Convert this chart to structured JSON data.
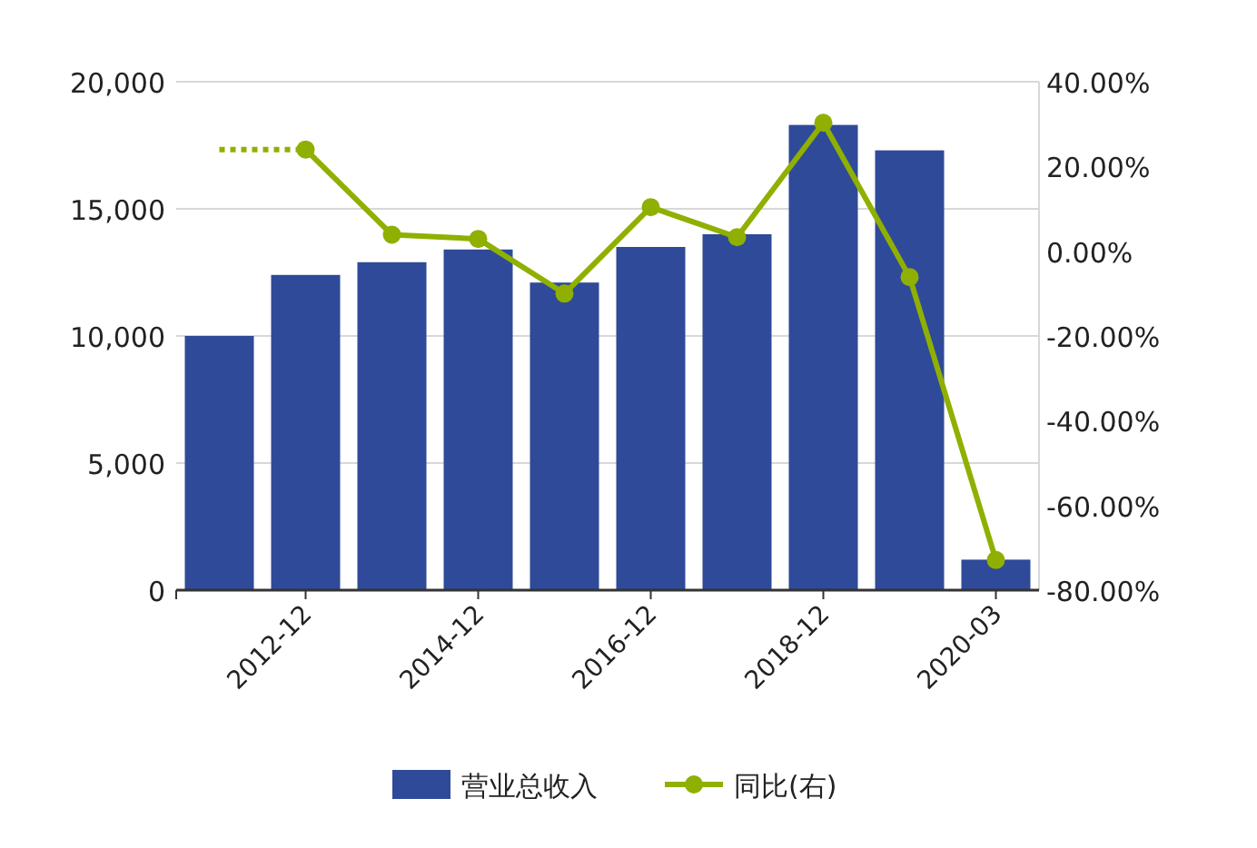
{
  "chart_data": {
    "type": "bar",
    "categories": [
      null,
      "2012-12",
      null,
      "2014-12",
      null,
      "2016-12",
      null,
      "2018-12",
      null,
      "2020-03"
    ],
    "series": [
      {
        "name": "营业总收入",
        "color": "#2f4a98",
        "values": [
          10000,
          12400,
          12900,
          13400,
          12100,
          13500,
          14000,
          18300,
          17300,
          1200
        ]
      },
      {
        "name": "同比(右)",
        "type": "line",
        "axis": "y2",
        "color": "#8fb000",
        "marker": "circle",
        "line_style": "solid",
        "values": [
          null,
          24,
          3.9,
          2.9,
          -10,
          10.4,
          3.3,
          30.3,
          -6.1,
          -72.9
        ]
      },
      {
        "type": "line",
        "axis": "y2",
        "color": "#8fb000",
        "marker": "none",
        "line_style": "dotted",
        "values": [
          24,
          24,
          null,
          null,
          null,
          null,
          null,
          null,
          null,
          null
        ]
      }
    ],
    "ylim": [
      0,
      20000
    ],
    "yticks": [
      0,
      {
        "value": 5000,
        "label": "5,000"
      },
      {
        "value": 10000,
        "label": "10,000"
      },
      {
        "value": 15000,
        "label": "15,000"
      },
      {
        "value": 20000,
        "label": "20,000"
      }
    ],
    "y2lim": [
      -80,
      40
    ],
    "y2ticks": [
      {
        "value": -80,
        "label": "-80.00%"
      },
      {
        "value": -60,
        "label": "-60.00%"
      },
      {
        "value": -40,
        "label": "-40.00%"
      },
      {
        "value": -20,
        "label": "-20.00%"
      },
      {
        "value": 0,
        "label": "0.00%"
      },
      {
        "value": 20,
        "label": "20.00%"
      },
      {
        "value": 40,
        "label": "40.00%"
      }
    ],
    "grid": "y",
    "legend": "bottom"
  }
}
